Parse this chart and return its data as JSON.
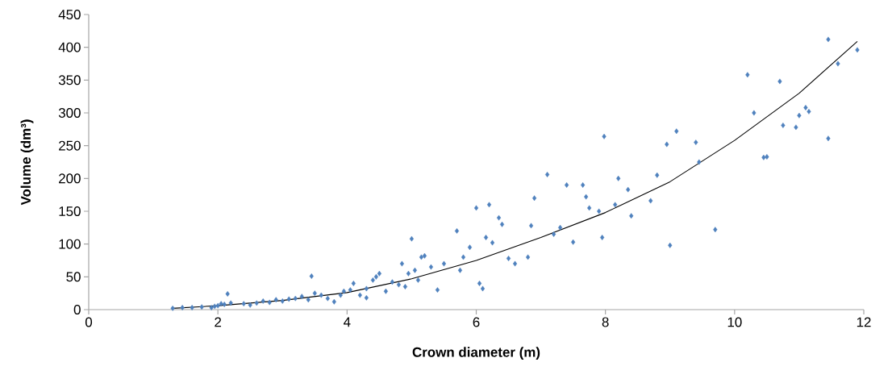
{
  "chart_data": {
    "type": "scatter",
    "xlabel": "Crown diameter (m)",
    "ylabel": "Volume (dm³)",
    "xlim": [
      0,
      12
    ],
    "ylim": [
      0,
      450
    ],
    "xticks": [
      0,
      2,
      4,
      6,
      8,
      10,
      12
    ],
    "yticks": [
      0,
      50,
      100,
      150,
      200,
      250,
      300,
      350,
      400,
      450
    ],
    "grid": false,
    "marker": "diamond",
    "series": [
      {
        "color": "#4f81bd",
        "x": [
          1.3,
          1.45,
          1.6,
          1.75,
          1.9,
          1.95,
          2.0,
          2.05,
          2.1,
          2.15,
          2.2,
          2.4,
          2.5,
          2.6,
          2.7,
          2.8,
          2.9,
          3.0,
          3.1,
          3.2,
          3.3,
          3.4,
          3.45,
          3.5,
          3.6,
          3.7,
          3.8,
          3.9,
          3.95,
          4.05,
          4.1,
          4.2,
          4.3,
          4.3,
          4.4,
          4.45,
          4.5,
          4.6,
          4.7,
          4.8,
          4.85,
          4.9,
          4.95,
          5.0,
          5.05,
          5.1,
          5.15,
          5.2,
          5.3,
          5.4,
          5.5,
          5.7,
          5.75,
          5.8,
          5.9,
          6.0,
          6.05,
          6.1,
          6.15,
          6.2,
          6.25,
          6.35,
          6.4,
          6.5,
          6.6,
          6.8,
          6.85,
          6.9,
          7.1,
          7.2,
          7.3,
          7.4,
          7.5,
          7.65,
          7.7,
          7.75,
          7.9,
          7.95,
          7.98,
          8.15,
          8.2,
          8.35,
          8.4,
          8.7,
          8.8,
          8.95,
          9.0,
          9.1,
          9.4,
          9.45,
          9.7,
          10.2,
          10.3,
          10.45,
          10.5,
          10.7,
          10.75,
          10.95,
          11.0,
          11.1,
          11.15,
          11.45,
          11.45,
          11.6,
          11.9
        ],
        "values": [
          2,
          3,
          3,
          4,
          3,
          5,
          6,
          9,
          8,
          24,
          10,
          9,
          7,
          10,
          13,
          11,
          15,
          13,
          16,
          17,
          20,
          15,
          51,
          25,
          22,
          17,
          12,
          22,
          28,
          30,
          40,
          22,
          32,
          18,
          45,
          50,
          55,
          28,
          42,
          38,
          70,
          35,
          55,
          108,
          60,
          45,
          80,
          82,
          65,
          30,
          70,
          120,
          60,
          80,
          95,
          155,
          40,
          32,
          110,
          160,
          102,
          140,
          130,
          78,
          70,
          80,
          128,
          170,
          206,
          115,
          125,
          190,
          103,
          190,
          172,
          155,
          150,
          110,
          264,
          160,
          200,
          183,
          143,
          166,
          205,
          252,
          98,
          272,
          255,
          225,
          122,
          358,
          300,
          232,
          233,
          348,
          281,
          278,
          296,
          308,
          302,
          261,
          412,
          375,
          396
        ]
      },
      {
        "type": "line",
        "color": "#000000",
        "marker": "none",
        "line_style": "solid",
        "x": [
          1.3,
          2,
          3,
          4,
          5,
          6,
          7,
          8,
          9,
          10,
          11,
          11.9
        ],
        "values": [
          2,
          6,
          14,
          26,
          47,
          75,
          110,
          148,
          195,
          258,
          330,
          409
        ]
      }
    ]
  }
}
